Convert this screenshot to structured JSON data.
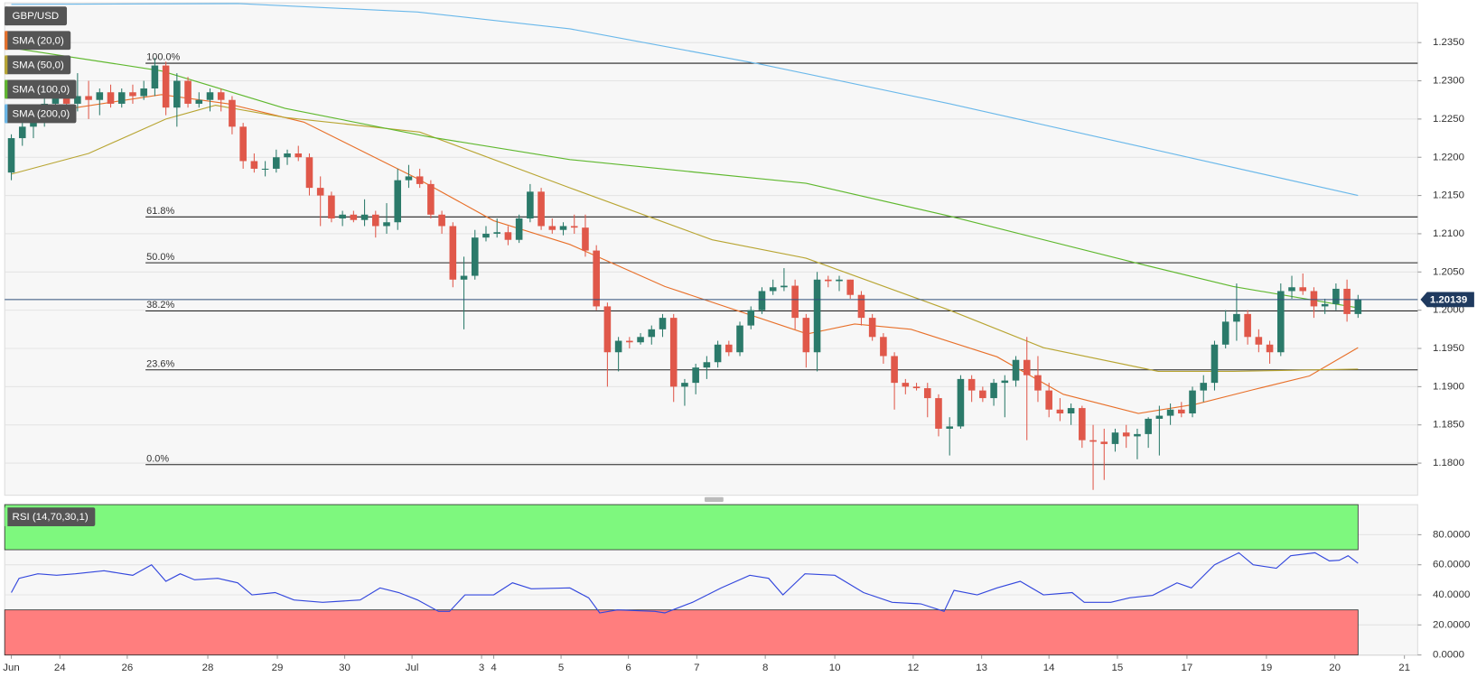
{
  "chart_data": [
    {
      "type": "candlestick",
      "title": "GBP/USD",
      "up_color": "#2b7a6a",
      "down_color": "#e0584a",
      "grid": true,
      "ylim": [
        1.1758,
        1.2402
      ],
      "yticks": [
        {
          "value": 1.18,
          "label": "1.1800"
        },
        {
          "value": 1.185,
          "label": "1.1850"
        },
        {
          "value": 1.19,
          "label": "1.1900"
        },
        {
          "value": 1.195,
          "label": "1.1950"
        },
        {
          "value": 1.2,
          "label": "1.2000"
        },
        {
          "value": 1.205,
          "label": "1.2050"
        },
        {
          "value": 1.21,
          "label": "1.2100"
        },
        {
          "value": 1.215,
          "label": "1.2150"
        },
        {
          "value": 1.22,
          "label": "1.2200"
        },
        {
          "value": 1.225,
          "label": "1.2250"
        },
        {
          "value": 1.23,
          "label": "1.2300"
        },
        {
          "value": 1.235,
          "label": "1.2350"
        }
      ],
      "xlim": [
        -0.6,
        127.4
      ],
      "xticks": [
        {
          "value": 0,
          "label": "Jun"
        },
        {
          "value": 4.4,
          "label": "24"
        },
        {
          "value": 10.5,
          "label": "26"
        },
        {
          "value": 17.8,
          "label": "28"
        },
        {
          "value": 24.1,
          "label": "29"
        },
        {
          "value": 30.2,
          "label": "30"
        },
        {
          "value": 36.3,
          "label": "Jul"
        },
        {
          "value": 42.6,
          "label": "3"
        },
        {
          "value": 43.7,
          "label": "4"
        },
        {
          "value": 49.8,
          "label": "5"
        },
        {
          "value": 55.9,
          "label": "6"
        },
        {
          "value": 62.1,
          "label": "7"
        },
        {
          "value": 68.3,
          "label": "8"
        },
        {
          "value": 74.6,
          "label": "10"
        },
        {
          "value": 81.7,
          "label": "12"
        },
        {
          "value": 87.9,
          "label": "13"
        },
        {
          "value": 94.0,
          "label": "14"
        },
        {
          "value": 100.2,
          "label": "15"
        },
        {
          "value": 106.5,
          "label": "17"
        },
        {
          "value": 113.7,
          "label": "19"
        },
        {
          "value": 119.9,
          "label": "20"
        },
        {
          "value": 126.2,
          "label": "21"
        }
      ],
      "ohlc": [
        [
          1.218,
          1.223,
          1.217,
          1.2225
        ],
        [
          1.2225,
          1.2245,
          1.2215,
          1.224
        ],
        [
          1.224,
          1.2265,
          1.2225,
          1.2255
        ],
        [
          1.2255,
          1.228,
          1.224,
          1.227
        ],
        [
          1.227,
          1.2295,
          1.225,
          1.2285
        ],
        [
          1.2285,
          1.23,
          1.2265,
          1.227
        ],
        [
          1.227,
          1.231,
          1.226,
          1.228
        ],
        [
          1.228,
          1.23,
          1.225,
          1.2275
        ],
        [
          1.2275,
          1.229,
          1.2255,
          1.2285
        ],
        [
          1.2285,
          1.2295,
          1.2265,
          1.227
        ],
        [
          1.227,
          1.229,
          1.2265,
          1.2285
        ],
        [
          1.2285,
          1.2295,
          1.227,
          1.228
        ],
        [
          1.228,
          1.23,
          1.2275,
          1.229
        ],
        [
          1.229,
          1.233,
          1.228,
          1.232
        ],
        [
          1.232,
          1.2325,
          1.2255,
          1.2265
        ],
        [
          1.2265,
          1.231,
          1.224,
          1.23
        ],
        [
          1.23,
          1.2305,
          1.2265,
          1.227
        ],
        [
          1.227,
          1.2285,
          1.2265,
          1.2275
        ],
        [
          1.2275,
          1.229,
          1.226,
          1.2285
        ],
        [
          1.2285,
          1.229,
          1.226,
          1.2275
        ],
        [
          1.2275,
          1.228,
          1.223,
          1.224
        ],
        [
          1.224,
          1.2245,
          1.2185,
          1.2195
        ],
        [
          1.2195,
          1.2205,
          1.218,
          1.2185
        ],
        [
          1.2185,
          1.2195,
          1.2175,
          1.2185
        ],
        [
          1.2185,
          1.221,
          1.218,
          1.22
        ],
        [
          1.22,
          1.221,
          1.219,
          1.2205
        ],
        [
          1.2205,
          1.2215,
          1.2195,
          1.22
        ],
        [
          1.22,
          1.2205,
          1.215,
          1.216
        ],
        [
          1.216,
          1.2175,
          1.211,
          1.215
        ],
        [
          1.215,
          1.2155,
          1.2115,
          1.212
        ],
        [
          1.212,
          1.213,
          1.211,
          1.2125
        ],
        [
          1.2125,
          1.213,
          1.2115,
          1.2118
        ],
        [
          1.2118,
          1.2145,
          1.211,
          1.2125
        ],
        [
          1.2125,
          1.213,
          1.2095,
          1.211
        ],
        [
          1.211,
          1.214,
          1.21,
          1.2115
        ],
        [
          1.2115,
          1.2185,
          1.2105,
          1.217
        ],
        [
          1.217,
          1.219,
          1.216,
          1.2175
        ],
        [
          1.2175,
          1.2185,
          1.216,
          1.2165
        ],
        [
          1.2165,
          1.217,
          1.212,
          1.2125
        ],
        [
          1.2125,
          1.213,
          1.21,
          1.211
        ],
        [
          1.211,
          1.2115,
          1.203,
          1.204
        ],
        [
          1.204,
          1.207,
          1.1975,
          1.2045
        ],
        [
          1.2045,
          1.2105,
          1.204,
          1.2095
        ],
        [
          1.2095,
          1.211,
          1.209,
          1.21
        ],
        [
          1.21,
          1.212,
          1.2095,
          1.2102
        ],
        [
          1.2102,
          1.211,
          1.2085,
          1.2092
        ],
        [
          1.2092,
          1.2125,
          1.2088,
          1.212
        ],
        [
          1.212,
          1.2165,
          1.2115,
          1.2155
        ],
        [
          1.2155,
          1.216,
          1.2105,
          1.211
        ],
        [
          1.211,
          1.212,
          1.21,
          1.2105
        ],
        [
          1.2105,
          1.2115,
          1.2098,
          1.211
        ],
        [
          1.211,
          1.2125,
          1.21,
          1.2108
        ],
        [
          1.2108,
          1.2125,
          1.207,
          1.2078
        ],
        [
          1.2078,
          1.2085,
          1.2,
          1.2005
        ],
        [
          1.2005,
          1.201,
          1.19,
          1.1945
        ],
        [
          1.1945,
          1.1965,
          1.192,
          1.196
        ],
        [
          1.196,
          1.1965,
          1.195,
          1.1958
        ],
        [
          1.1958,
          1.197,
          1.1955,
          1.1965
        ],
        [
          1.1965,
          1.198,
          1.1955,
          1.1975
        ],
        [
          1.1975,
          1.1995,
          1.1965,
          1.199
        ],
        [
          1.199,
          1.1995,
          1.188,
          1.19
        ],
        [
          1.19,
          1.191,
          1.1875,
          1.1905
        ],
        [
          1.1905,
          1.193,
          1.189,
          1.1925
        ],
        [
          1.1925,
          1.194,
          1.191,
          1.1932
        ],
        [
          1.1932,
          1.196,
          1.1925,
          1.1955
        ],
        [
          1.1955,
          1.196,
          1.194,
          1.1945
        ],
        [
          1.1945,
          1.1985,
          1.194,
          1.198
        ],
        [
          1.198,
          1.2005,
          1.1975,
          1.2
        ],
        [
          1.2,
          1.203,
          1.1995,
          1.2025
        ],
        [
          1.2025,
          1.204,
          1.202,
          1.203
        ],
        [
          1.203,
          1.2055,
          1.2025,
          1.2032
        ],
        [
          1.2032,
          1.204,
          1.1975,
          1.199
        ],
        [
          1.199,
          1.1995,
          1.1925,
          1.1945
        ],
        [
          1.1945,
          1.205,
          1.192,
          1.204
        ],
        [
          1.204,
          1.2045,
          1.203,
          1.2038
        ],
        [
          1.2038,
          1.2045,
          1.2025,
          1.204
        ],
        [
          1.204,
          1.204,
          1.2015,
          1.202
        ],
        [
          1.202,
          1.2025,
          1.198,
          1.199
        ],
        [
          1.199,
          1.1995,
          1.196,
          1.1965
        ],
        [
          1.1965,
          1.197,
          1.193,
          1.194
        ],
        [
          1.194,
          1.1945,
          1.187,
          1.1905
        ],
        [
          1.1905,
          1.191,
          1.189,
          1.19
        ],
        [
          1.19,
          1.1905,
          1.1895,
          1.1898
        ],
        [
          1.1898,
          1.1905,
          1.186,
          1.1885
        ],
        [
          1.1885,
          1.189,
          1.1835,
          1.1845
        ],
        [
          1.1845,
          1.186,
          1.181,
          1.1848
        ],
        [
          1.1848,
          1.1915,
          1.1845,
          1.191
        ],
        [
          1.191,
          1.1915,
          1.188,
          1.1895
        ],
        [
          1.1895,
          1.19,
          1.188,
          1.1885
        ],
        [
          1.1885,
          1.191,
          1.1875,
          1.1905
        ],
        [
          1.1905,
          1.1915,
          1.186,
          1.1908
        ],
        [
          1.1908,
          1.194,
          1.19,
          1.1935
        ],
        [
          1.1935,
          1.1965,
          1.183,
          1.1915
        ],
        [
          1.1915,
          1.194,
          1.188,
          1.1895
        ],
        [
          1.1895,
          1.1905,
          1.186,
          1.187
        ],
        [
          1.187,
          1.1885,
          1.1855,
          1.1865
        ],
        [
          1.1865,
          1.1878,
          1.185,
          1.1872
        ],
        [
          1.1872,
          1.1875,
          1.182,
          1.183
        ],
        [
          1.183,
          1.185,
          1.1765,
          1.1828
        ],
        [
          1.1828,
          1.1845,
          1.1778,
          1.1825
        ],
        [
          1.1825,
          1.1845,
          1.1815,
          1.184
        ],
        [
          1.184,
          1.185,
          1.182,
          1.1835
        ],
        [
          1.1835,
          1.1845,
          1.1805,
          1.1838
        ],
        [
          1.1838,
          1.186,
          1.182,
          1.1858
        ],
        [
          1.1858,
          1.1875,
          1.181,
          1.1862
        ],
        [
          1.1862,
          1.1878,
          1.185,
          1.187
        ],
        [
          1.187,
          1.188,
          1.186,
          1.1865
        ],
        [
          1.1865,
          1.19,
          1.186,
          1.1895
        ],
        [
          1.1895,
          1.1915,
          1.188,
          1.1905
        ],
        [
          1.1905,
          1.196,
          1.1895,
          1.1955
        ],
        [
          1.1955,
          1.2,
          1.195,
          1.1985
        ],
        [
          1.1985,
          1.2035,
          1.196,
          1.1995
        ],
        [
          1.1995,
          1.2,
          1.1955,
          1.1965
        ],
        [
          1.1965,
          1.1975,
          1.1945,
          1.1955
        ],
        [
          1.1955,
          1.196,
          1.193,
          1.1945
        ],
        [
          1.1945,
          1.2035,
          1.194,
          1.2025
        ],
        [
          1.2025,
          1.2045,
          1.2015,
          1.203
        ],
        [
          1.203,
          1.2048,
          1.202,
          1.2025
        ],
        [
          1.2025,
          1.203,
          1.199,
          1.2005
        ],
        [
          1.2005,
          1.2015,
          1.1995,
          1.2008
        ],
        [
          1.2008,
          1.2035,
          1.2,
          1.2028
        ],
        [
          1.2028,
          1.204,
          1.1985,
          1.1995
        ],
        [
          1.1995,
          1.202,
          1.199,
          1.2014
        ]
      ],
      "series": [
        {
          "name": "SMA (20,0)",
          "color": "#e8702a",
          "x": [
            0,
            13.6,
            19.6,
            26.5,
            36.8,
            43.7,
            50.6,
            59.2,
            72.1,
            76.4,
            81.5,
            89.3,
            95.3,
            102.1,
            107.3,
            112.5,
            117.6,
            122
          ],
          "values": [
            1.2252,
            1.2282,
            1.227,
            1.2246,
            1.2172,
            1.2117,
            1.2086,
            1.2031,
            1.1969,
            1.1982,
            1.1975,
            1.1939,
            1.189,
            1.1865,
            1.1877,
            1.1896,
            1.1914,
            1.1951
          ]
        },
        {
          "name": "SMA (50,0)",
          "color": "#b8a532",
          "x": [
            0,
            7,
            14,
            18.5,
            24.8,
            37,
            50.6,
            63.5,
            72,
            85,
            93.5,
            103.9,
            110.7,
            122
          ],
          "values": [
            1.2178,
            1.2205,
            1.225,
            1.2268,
            1.2252,
            1.2233,
            1.216,
            1.2092,
            1.2068,
            1.2,
            1.1951,
            1.192,
            1.192,
            1.1923
          ]
        },
        {
          "name": "SMA (100,0)",
          "color": "#5fb82e",
          "x": [
            0,
            13.6,
            24.8,
            37.7,
            50.6,
            67.8,
            72,
            85,
            102.1,
            110.7,
            122
          ],
          "values": [
            1.2343,
            1.2313,
            1.2264,
            1.2227,
            1.2197,
            1.2172,
            1.2166,
            1.2123,
            1.2061,
            1.2031,
            1.2003
          ]
        },
        {
          "name": "SMA (200,0)",
          "color": "#6ab8ea",
          "x": [
            0,
            20.5,
            36.8,
            50.6,
            67.8,
            85,
            102,
            122
          ],
          "values": [
            1.24,
            1.2401,
            1.239,
            1.2368,
            1.2322,
            1.227,
            1.2215,
            1.215
          ]
        }
      ],
      "fib_levels": [
        {
          "label": "100.0%",
          "value": 1.2323
        },
        {
          "label": "61.8%",
          "value": 1.2122
        },
        {
          "label": "50.0%",
          "value": 1.2062
        },
        {
          "label": "38.2%",
          "value": 1.1999
        },
        {
          "label": "23.6%",
          "value": 1.1922
        },
        {
          "label": "0.0%",
          "value": 1.1798
        }
      ],
      "last_price": 1.20139
    },
    {
      "type": "line",
      "title": "RSI (14,70,30,1)",
      "color": "#3347dd",
      "ylim": [
        0,
        100
      ],
      "xlim": [
        -0.6,
        127.4
      ],
      "grid": true,
      "yticks": [
        {
          "value": 0,
          "label": "0.0000"
        },
        {
          "value": 20,
          "label": "20.0000"
        },
        {
          "value": 40,
          "label": "40.0000"
        },
        {
          "value": 60,
          "label": "60.0000"
        },
        {
          "value": 80,
          "label": "80.0000"
        }
      ],
      "overbought": 70,
      "oversold": 30,
      "overbought_color": "#7ef87e",
      "oversold_color": "#ff7e7e",
      "x": [
        0,
        0.7,
        2.4,
        4.1,
        5.8,
        8.4,
        11,
        12.7,
        14,
        15.3,
        16.6,
        18.7,
        20.5,
        21.8,
        23.9,
        25.6,
        28.2,
        31.6,
        33.4,
        35.1,
        36.8,
        38.7,
        39.7,
        41.1,
        43.7,
        45.4,
        47.1,
        50.6,
        52.3,
        53.3,
        54.9,
        58.3,
        59.2,
        61.7,
        64.3,
        66.9,
        68.6,
        69.9,
        71.9,
        74.6,
        77.2,
        79.8,
        82.4,
        84.5,
        85.4,
        87.5,
        89.3,
        91.4,
        93.5,
        96.1,
        97.2,
        99.6,
        101.3,
        103.4,
        105.6,
        106.9,
        109,
        111.2,
        112.5,
        114.6,
        115.9,
        118.1,
        119.4,
        120.3,
        121.1,
        122
      ],
      "values": [
        41.5,
        51,
        54,
        53,
        54,
        56,
        53,
        60,
        49,
        54,
        50,
        51,
        48,
        40,
        41.5,
        36.6,
        35,
        36.6,
        44.6,
        41.5,
        36.6,
        29,
        29,
        40,
        40,
        48,
        44,
        44.6,
        38,
        28,
        30,
        29,
        28,
        35,
        44.6,
        53,
        51,
        40,
        54,
        53,
        41.5,
        35,
        34,
        29,
        43,
        40,
        44.6,
        49,
        40,
        41.5,
        35,
        35,
        38,
        39.7,
        48,
        44.6,
        60,
        68,
        60,
        57.7,
        66,
        68,
        62.6,
        63,
        66,
        61
      ]
    }
  ]
}
